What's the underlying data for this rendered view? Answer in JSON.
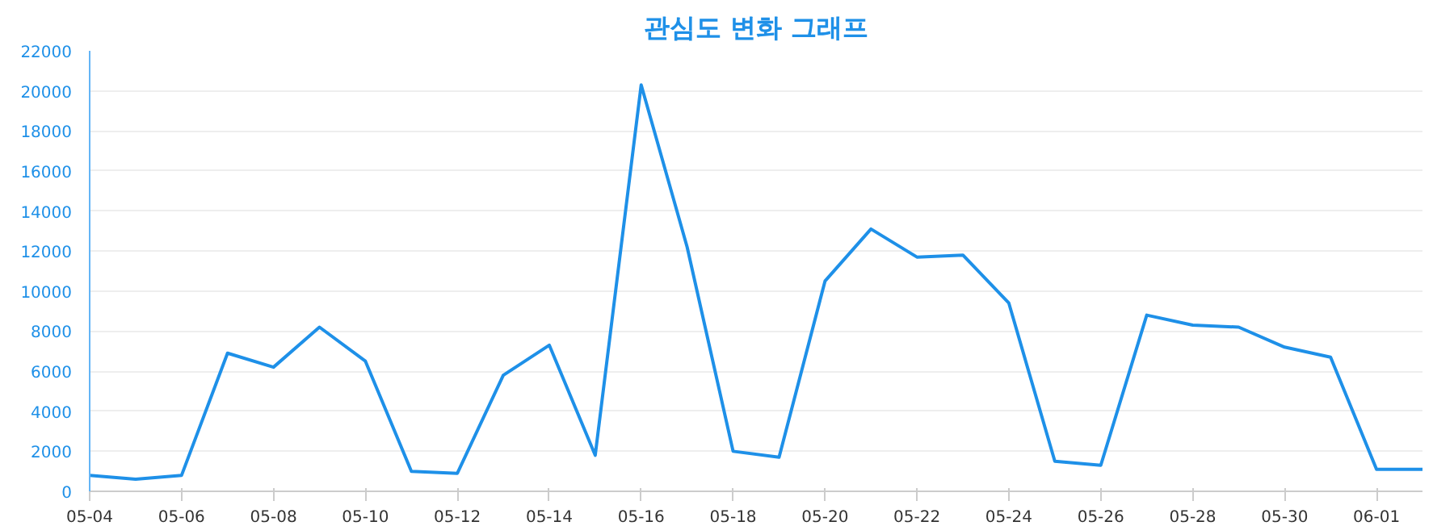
{
  "chart_data": {
    "type": "line",
    "title": "관심도 변화 그래프",
    "categories": [
      "05-04",
      null,
      "05-06",
      null,
      "05-08",
      null,
      "05-10",
      null,
      "05-12",
      null,
      "05-14",
      null,
      "05-16",
      null,
      "05-18",
      null,
      "05-20",
      null,
      "05-22",
      null,
      "05-24",
      null,
      "05-26",
      null,
      "05-28",
      null,
      "05-30",
      null,
      "06-01",
      null
    ],
    "series": [
      {
        "color": "#1e90e8",
        "values": [
          800,
          600,
          800,
          6900,
          6200,
          8200,
          6500,
          1000,
          900,
          5800,
          7300,
          1800,
          20300,
          12200,
          2000,
          1700,
          10500,
          13100,
          11700,
          11800,
          9400,
          1500,
          1300,
          8800,
          8300,
          8200,
          7200,
          6700,
          1100,
          1100
        ]
      }
    ],
    "ylim": [
      0,
      22000
    ],
    "yticks": [
      0,
      2000,
      4000,
      6000,
      8000,
      10000,
      12000,
      14000,
      16000,
      18000,
      20000,
      22000
    ],
    "grid": "y",
    "marker": "none",
    "line_style": "solid"
  }
}
